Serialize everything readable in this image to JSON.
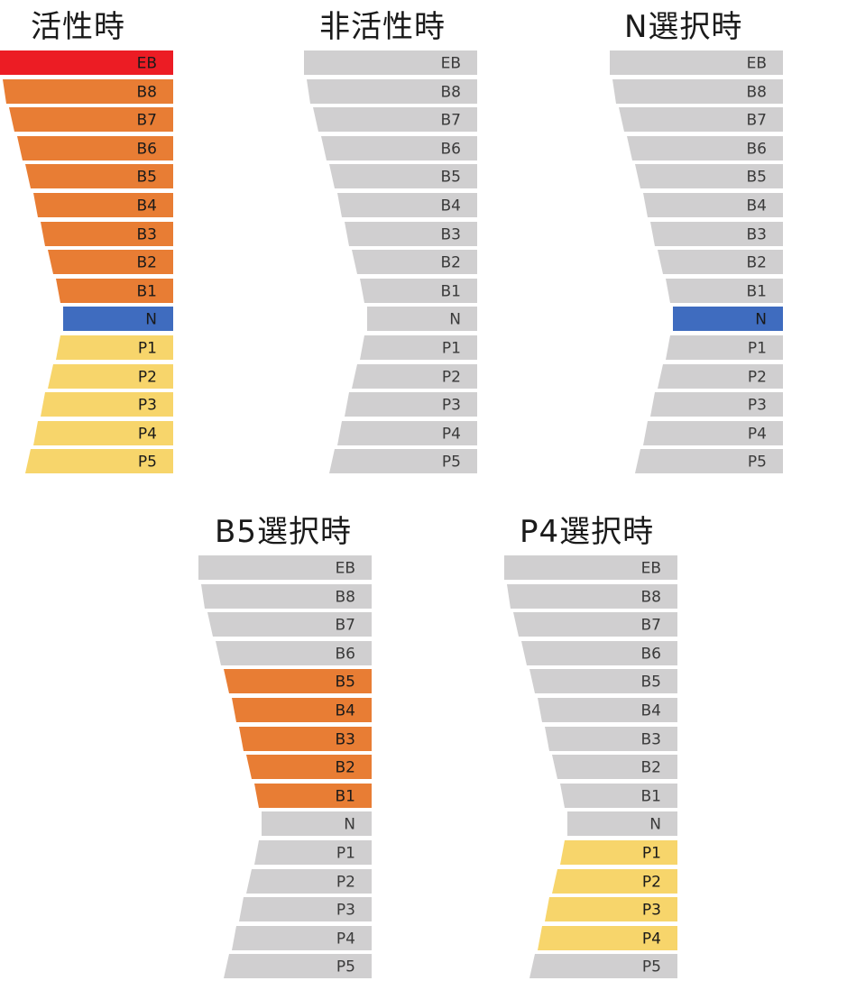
{
  "notch_labels": [
    "EB",
    "B8",
    "B7",
    "B6",
    "B5",
    "B4",
    "B3",
    "B2",
    "B1",
    "N",
    "P1",
    "P2",
    "P3",
    "P4",
    "P5"
  ],
  "colors": {
    "inactive_fill": "#d0cfd0",
    "inactive_text": "#3a3a3a",
    "emergency_fill": "#ec1c24",
    "brake_fill": "#e87d34",
    "neutral_fill": "#3f6cbf",
    "power_fill": "#f7d56b",
    "active_text": "#1a1a1a"
  },
  "panels": [
    {
      "title": "活性時",
      "highlight": {
        "EB": "emergency",
        "B8": "brake",
        "B7": "brake",
        "B6": "brake",
        "B5": "brake",
        "B4": "brake",
        "B3": "brake",
        "B2": "brake",
        "B1": "brake",
        "N": "neutral",
        "P1": "power",
        "P2": "power",
        "P3": "power",
        "P4": "power",
        "P5": "power"
      }
    },
    {
      "title": "非活性時",
      "highlight": {}
    },
    {
      "title": "N選択時",
      "highlight": {
        "N": "neutral"
      }
    },
    {
      "title": "B5選択時",
      "highlight": {
        "B5": "brake",
        "B4": "brake",
        "B3": "brake",
        "B2": "brake",
        "B1": "brake"
      }
    },
    {
      "title": "P4選択時",
      "highlight": {
        "P1": "power",
        "P2": "power",
        "P3": "power",
        "P4": "power"
      }
    }
  ]
}
